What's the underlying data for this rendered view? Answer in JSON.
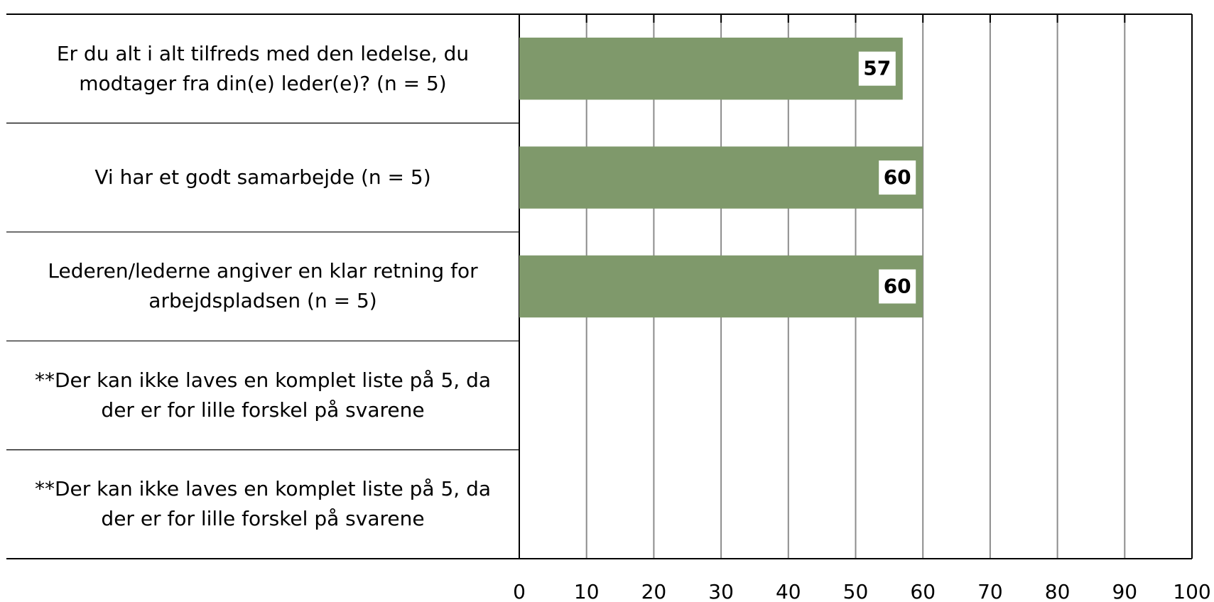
{
  "chart_data": {
    "type": "barh",
    "categories": [
      "Er du alt i alt tilfreds med den ledelse, du modtager fra din(e) leder(e)? (n = 5)",
      "Vi har et godt samarbejde (n = 5)",
      "Lederen/lederne angiver en klar retning for arbejdspladsen (n = 5)",
      "**Der kan ikke laves en komplet liste på 5, da der er for lille forskel på svarene",
      "**Der kan ikke laves en komplet liste på 5, da der er for lille forskel på svarene"
    ],
    "values": [
      57,
      60,
      60,
      null,
      null
    ],
    "color": "#7f996b",
    "xlim": [
      0,
      100
    ],
    "xticks": [
      0,
      10,
      20,
      30,
      40,
      50,
      60,
      70,
      80,
      90,
      100
    ],
    "grid": true
  }
}
